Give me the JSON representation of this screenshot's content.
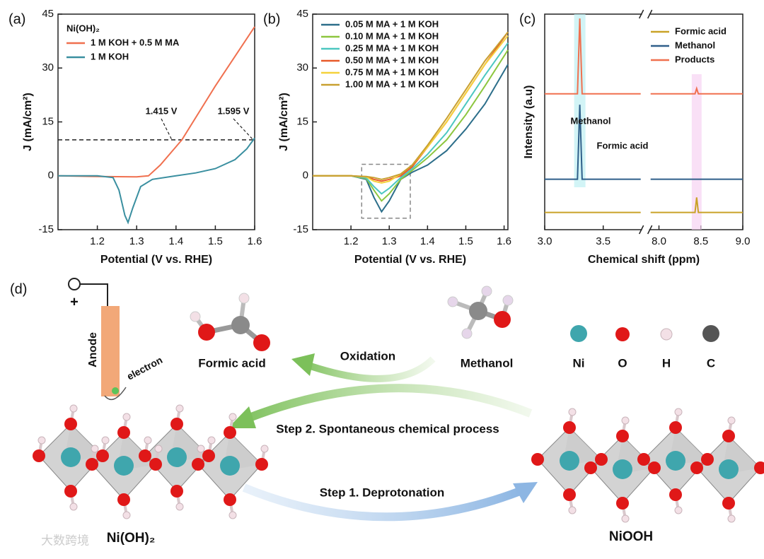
{
  "chart_data": [
    {
      "type": "line",
      "panel": "(a)",
      "xlabel": "Potential (V vs. RHE)",
      "ylabel": "J (mA/cm²)",
      "xlim": [
        1.1,
        1.6
      ],
      "xticks": [
        1.2,
        1.3,
        1.4,
        1.5,
        1.6
      ],
      "ylim": [
        -15,
        45
      ],
      "yticks": [
        -15,
        0,
        15,
        30,
        45
      ],
      "legend_title": "Ni(OH)₂",
      "legend": "top-left",
      "hline": 10,
      "annotations": [
        "1.415 V",
        "1.595 V"
      ],
      "series": [
        {
          "name": "1 M KOH + 0.5 M MA",
          "color": "#f0704f",
          "x": [
            1.1,
            1.2,
            1.3,
            1.33,
            1.36,
            1.415,
            1.5,
            1.6
          ],
          "values": [
            0,
            -0.2,
            -0.3,
            0,
            3,
            10,
            25,
            41.5
          ]
        },
        {
          "name": "1 M KOH",
          "color": "#3a8fa0",
          "x": [
            1.1,
            1.2,
            1.24,
            1.255,
            1.27,
            1.278,
            1.29,
            1.31,
            1.34,
            1.4,
            1.45,
            1.5,
            1.55,
            1.58,
            1.6
          ],
          "values": [
            0,
            0,
            -0.5,
            -4,
            -11,
            -13,
            -9,
            -3,
            -1,
            0,
            0.8,
            2,
            4.5,
            7.5,
            10.5
          ]
        }
      ]
    },
    {
      "type": "line",
      "panel": "(b)",
      "xlabel": "Potential (V vs. RHE)",
      "ylabel": "J (mA/cm²)",
      "xlim": [
        1.1,
        1.61
      ],
      "xticks": [
        1.2,
        1.3,
        1.4,
        1.5,
        1.6
      ],
      "ylim": [
        -15,
        45
      ],
      "yticks": [
        -15,
        0,
        15,
        30,
        45
      ],
      "legend": "top-left",
      "x": [
        1.1,
        1.2,
        1.24,
        1.26,
        1.28,
        1.3,
        1.33,
        1.36,
        1.4,
        1.45,
        1.5,
        1.55,
        1.61
      ],
      "series": [
        {
          "name": "0.05 M MA + 1 M KOH",
          "color": "#2c6e8a",
          "values": [
            0,
            0,
            -1,
            -6,
            -10,
            -7,
            -1,
            1,
            3,
            7,
            13,
            20,
            31
          ]
        },
        {
          "name": "0.10 M MA + 1 M KOH",
          "color": "#8dc63f",
          "values": [
            0,
            0,
            -0.8,
            -4,
            -7,
            -5,
            -1,
            1.5,
            5,
            10,
            17,
            25,
            35
          ]
        },
        {
          "name": "0.25 M MA + 1 M KOH",
          "color": "#4cc7c0",
          "values": [
            0,
            0,
            -0.6,
            -3,
            -5,
            -3.5,
            -0.5,
            2,
            6,
            12,
            20,
            28,
            37
          ]
        },
        {
          "name": "0.50 M MA + 1 M KOH",
          "color": "#e85a2a",
          "values": [
            0,
            0,
            -0.3,
            -1,
            -1.5,
            -1,
            0,
            2.5,
            8,
            15,
            23,
            31,
            40
          ]
        },
        {
          "name": "0.75 M MA + 1 M KOH",
          "color": "#f5d23c",
          "values": [
            0,
            0,
            -0.3,
            -1.5,
            -2,
            -1.5,
            0.5,
            3,
            8,
            15,
            23,
            31,
            39
          ]
        },
        {
          "name": "1.00 M MA + 1 M KOH",
          "color": "#c8a030",
          "values": [
            0,
            0,
            -0.2,
            -0.5,
            -1,
            -0.5,
            0.5,
            3,
            8.5,
            16,
            24,
            32,
            40
          ]
        }
      ]
    },
    {
      "type": "line",
      "panel": "(c)",
      "xlabel": "Chemical shift (ppm)",
      "ylabel": "Intensity (a.u)",
      "xlim": [
        3.0,
        9.0
      ],
      "xbreak": [
        3.82,
        7.9
      ],
      "xticks": [
        {
          "value": 3,
          "label": "3.0"
        },
        3.5,
        {
          "value": 8,
          "label": "8.0"
        },
        8.5,
        {
          "value": 9,
          "label": "9.0"
        }
      ],
      "ylim": [
        0,
        10
      ],
      "legend": "top-right",
      "annotations": [
        "Methanol",
        "Formic acid"
      ],
      "series": [
        {
          "name": "Formic acid",
          "color": "#c9a227",
          "x": [
            3.0,
            3.82,
            7.9,
            8.43,
            8.45,
            8.47,
            9.0
          ],
          "values": [
            0.8,
            0.8,
            0.8,
            0.8,
            1.5,
            0.8,
            0.8
          ]
        },
        {
          "name": "Methanol",
          "color": "#2f5f8a",
          "x": [
            3.0,
            3.28,
            3.3,
            3.32,
            3.82,
            7.9,
            9.0
          ],
          "values": [
            2.34,
            2.34,
            5.8,
            2.34,
            2.34,
            2.34,
            2.34
          ]
        },
        {
          "name": "Products",
          "color": "#f0704f",
          "x": [
            3.0,
            3.28,
            3.3,
            3.32,
            3.82,
            7.9,
            8.43,
            8.45,
            8.47,
            9.0
          ],
          "values": [
            6.3,
            6.3,
            9.8,
            6.3,
            6.3,
            6.3,
            6.3,
            6.55,
            6.3,
            6.3
          ]
        }
      ]
    }
  ],
  "diagram": {
    "panel": "(d)",
    "plus": "+",
    "anode": "Anode",
    "electron": "electron",
    "formic_acid": "Formic acid",
    "oxidation": "Oxidation",
    "methanol": "Methanol",
    "atoms": [
      "Ni",
      "O",
      "H",
      "C"
    ],
    "step2": "Step 2. Spontaneous chemical process",
    "step1": "Step 1. Deprotonation",
    "left_phase": "Ni(OH)₂",
    "right_phase": "NiOOH",
    "watermark": "大数跨境"
  }
}
